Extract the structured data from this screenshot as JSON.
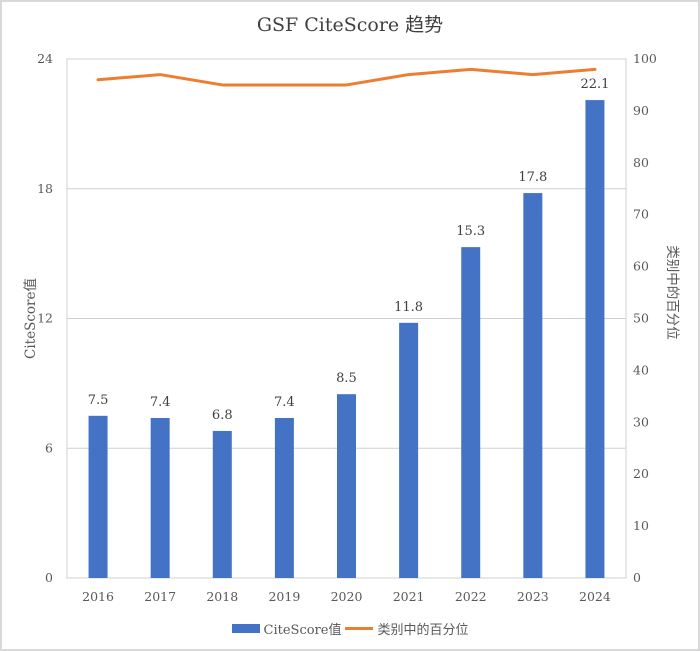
{
  "chart_data": {
    "type": "bar+line",
    "title": "GSF CiteScore 趋势",
    "categories": [
      "2016",
      "2017",
      "2018",
      "2019",
      "2020",
      "2021",
      "2022",
      "2023",
      "2024"
    ],
    "series": [
      {
        "name": "CiteScore值",
        "type": "bar",
        "axis": "left",
        "color": "#4472C4",
        "values": [
          7.5,
          7.4,
          6.8,
          7.4,
          8.5,
          11.8,
          15.3,
          17.8,
          22.1
        ],
        "data_labels": [
          "7.5",
          "7.4",
          "6.8",
          "7.4",
          "8.5",
          "11.8",
          "15.3",
          "17.8",
          "22.1"
        ]
      },
      {
        "name": "类别中的百分位",
        "type": "line",
        "axis": "right",
        "color": "#ED7D31",
        "values": [
          96,
          97,
          95,
          95,
          95,
          97,
          98,
          97,
          98
        ]
      }
    ],
    "ylabel": "CiteScore值",
    "ylabel_right": "类别中的百分位",
    "xlabel": "",
    "ylim": [
      0,
      24
    ],
    "yticks": [
      "0",
      "6",
      "12",
      "18",
      "24"
    ],
    "ylim_right": [
      0,
      100
    ],
    "yticks_right": [
      "0",
      "10",
      "20",
      "30",
      "40",
      "50",
      "60",
      "70",
      "80",
      "90",
      "100"
    ],
    "grid": true,
    "legend_position": "bottom"
  },
  "legend": {
    "items": [
      {
        "label": "CiteScore值",
        "color": "#4472C4"
      },
      {
        "label": "类别中的百分位",
        "color": "#ED7D31"
      }
    ]
  }
}
